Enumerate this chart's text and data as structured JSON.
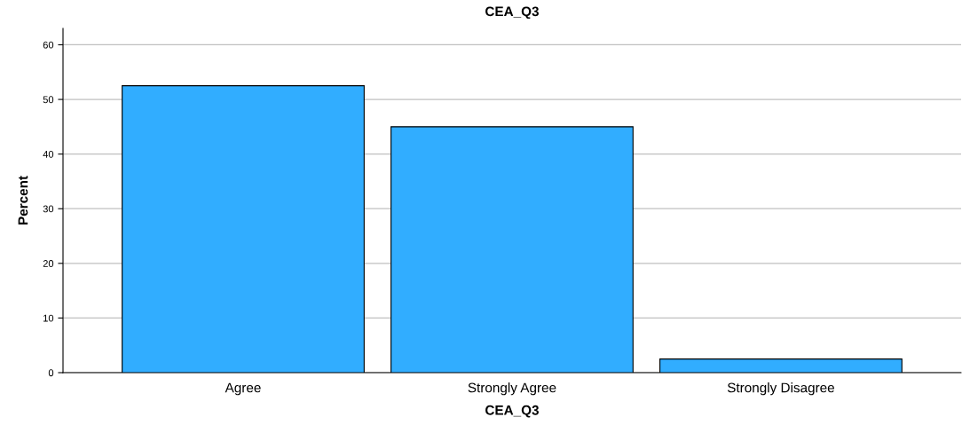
{
  "chart_data": {
    "type": "bar",
    "title": "CEA_Q3",
    "xlabel": "CEA_Q3",
    "ylabel": "Percent",
    "categories": [
      "Agree",
      "Strongly Agree",
      "Strongly Disagree"
    ],
    "values": [
      52.5,
      45.0,
      2.5
    ],
    "color": "#31adff",
    "ylim": [
      0,
      63
    ],
    "yticks": [
      0,
      10,
      20,
      30,
      40,
      50,
      60
    ],
    "grid": "y"
  }
}
